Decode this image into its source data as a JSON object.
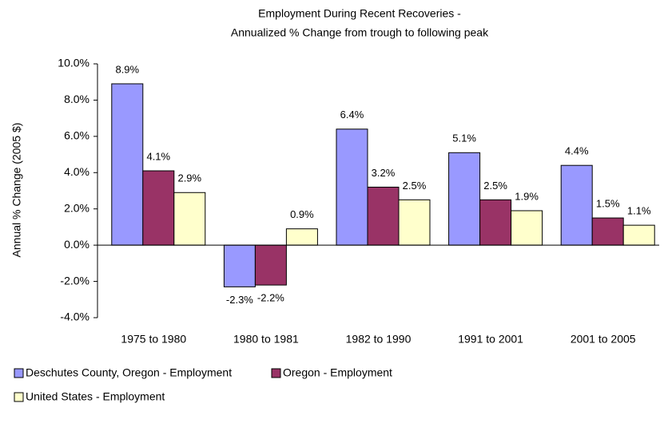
{
  "chart_data": {
    "type": "bar",
    "title": "Employment During Recent Recoveries -",
    "subtitle": "Annualized % Change from trough to following peak",
    "y_label": "Annual % Change (2005 $)",
    "categories": [
      "1975 to 1980",
      "1980 to 1981",
      "1982 to 1990",
      "1991 to 2001",
      "2001 to 2005"
    ],
    "series": [
      {
        "name": "Deschutes County, Oregon - Employment",
        "color": "#9999ff",
        "values": [
          8.9,
          -2.3,
          6.4,
          5.1,
          4.4
        ],
        "value_labels": [
          "8.9%",
          "-2.3%",
          "6.4%",
          "5.1%",
          "4.4%"
        ]
      },
      {
        "name": "Oregon - Employment",
        "color": "#993366",
        "values": [
          4.1,
          -2.2,
          3.2,
          2.5,
          1.5
        ],
        "value_labels": [
          "4.1%",
          "-2.2%",
          "3.2%",
          "2.5%",
          "1.5%"
        ]
      },
      {
        "name": "United States - Employment",
        "color": "#ffffcc",
        "values": [
          2.9,
          0.9,
          2.5,
          1.9,
          1.1
        ],
        "value_labels": [
          "2.9%",
          "0.9%",
          "2.5%",
          "1.9%",
          "1.1%"
        ]
      }
    ],
    "ylim": [
      -4,
      10
    ],
    "yticks": [
      {
        "value": -4,
        "label": "-4.0%"
      },
      {
        "value": -2,
        "label": "-2.0%"
      },
      {
        "value": 0,
        "label": "0.0%"
      },
      {
        "value": 2,
        "label": "2.0%"
      },
      {
        "value": 4,
        "label": "4.0%"
      },
      {
        "value": 6,
        "label": "6.0%"
      },
      {
        "value": 8,
        "label": "8.0%"
      },
      {
        "value": 10,
        "label": "10.0%"
      }
    ],
    "grid": false
  }
}
